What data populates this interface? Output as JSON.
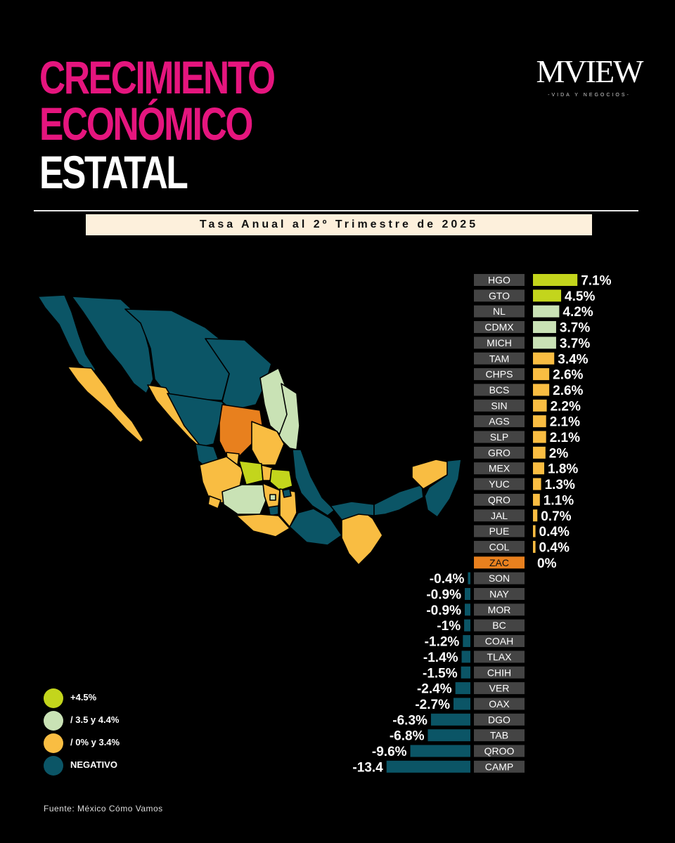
{
  "title": {
    "line1": "CRECIMIENTO",
    "line2": "ECONÓMICO",
    "line3": "ESTATAL",
    "subtitle": "Tasa Anual al 2º Trimestre de 2025"
  },
  "brand": {
    "name": "MVIEW",
    "tagline": "-VIDA Y NEGOCIOS-"
  },
  "colors": {
    "accent_title": "#e5157e",
    "high": "#c3d51c",
    "mid": "#c9e2b5",
    "low": "#f9bd42",
    "zero": "#e8801e",
    "negative": "#0b5566",
    "label_bg": "#444444"
  },
  "legend": [
    {
      "label": "+4.5%",
      "color": "#c3d51c"
    },
    {
      "label": "/ 3.5 y 4.4%",
      "color": "#c9e2b5"
    },
    {
      "label": "/ 0% y 3.4%",
      "color": "#f9bd42"
    },
    {
      "label": "NEGATIVO",
      "color": "#0b5566"
    }
  ],
  "source": "Fuente: México Cómo Vamos",
  "chart_data": {
    "type": "bar",
    "orientation": "horizontal-diverging",
    "title": "Tasa Anual al 2º Trimestre de 2025",
    "categories": [
      "HGO",
      "GTO",
      "NL",
      "CDMX",
      "MICH",
      "TAM",
      "CHPS",
      "BCS",
      "SIN",
      "AGS",
      "SLP",
      "GRO",
      "MEX",
      "YUC",
      "QRO",
      "JAL",
      "PUE",
      "COL",
      "ZAC",
      "SON",
      "NAY",
      "MOR",
      "BC",
      "COAH",
      "TLAX",
      "CHIH",
      "VER",
      "OAX",
      "DGO",
      "TAB",
      "QROO",
      "CAMP"
    ],
    "values": [
      7.1,
      4.5,
      4.2,
      3.7,
      3.7,
      3.4,
      2.6,
      2.6,
      2.2,
      2.1,
      2.1,
      2,
      1.8,
      1.3,
      1.1,
      0.7,
      0.4,
      0.4,
      0,
      -0.4,
      -0.9,
      -0.9,
      -1,
      -1.2,
      -1.4,
      -1.5,
      -2.4,
      -2.7,
      -6.3,
      -6.8,
      -9.6,
      -13.4
    ],
    "value_labels": [
      "7.1%",
      "4.5%",
      "4.2%",
      "3.7%",
      "3.7%",
      "3.4%",
      "2.6%",
      "2.6%",
      "2.2%",
      "2.1%",
      "2.1%",
      "2%",
      "1.8%",
      "1.3%",
      "1.1%",
      "0.7%",
      "0.4%",
      "0.4%",
      "0%",
      "-0.4%",
      "-0.9%",
      "-0.9%",
      "-1%",
      "-1.2%",
      "-1.4%",
      "-1.5%",
      "-2.4%",
      "-2.7%",
      "-6.3%",
      "-6.8%",
      "-9.6%",
      "-13.4"
    ],
    "bar_colors": [
      "#c3d51c",
      "#c3d51c",
      "#c9e2b5",
      "#c9e2b5",
      "#c9e2b5",
      "#f9bd42",
      "#f9bd42",
      "#f9bd42",
      "#f9bd42",
      "#f9bd42",
      "#f9bd42",
      "#f9bd42",
      "#f9bd42",
      "#f9bd42",
      "#f9bd42",
      "#f9bd42",
      "#f9bd42",
      "#f9bd42",
      "#e8801e",
      "#0b5566",
      "#0b5566",
      "#0b5566",
      "#0b5566",
      "#0b5566",
      "#0b5566",
      "#0b5566",
      "#0b5566",
      "#0b5566",
      "#0b5566",
      "#0b5566",
      "#0b5566",
      "#0b5566"
    ],
    "unit": "%"
  }
}
